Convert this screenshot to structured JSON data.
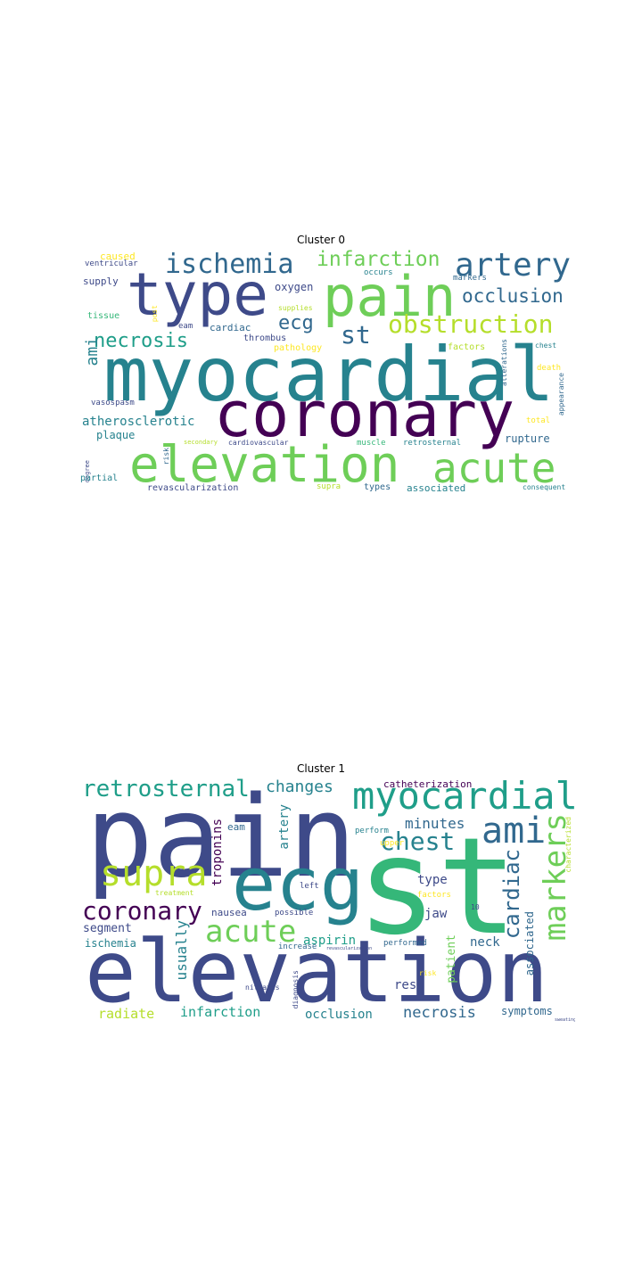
{
  "figure": {
    "panels": [
      {
        "title": "Cluster 0",
        "words": [
          "myocardial",
          "coronary",
          "elevation",
          "acute",
          "pain",
          "type",
          "artery",
          "ischemia",
          "infarction",
          "obstruction",
          "occlusion",
          "st",
          "ecg",
          "necrosis",
          "ami",
          "atherosclerotic",
          "plaque",
          "oxygen",
          "supply",
          "ventricular",
          "caused",
          "tissue",
          "post",
          "eam",
          "cardiac",
          "thrombus",
          "pathology",
          "supplies",
          "markers",
          "occurs",
          "factors",
          "chest",
          "death",
          "appearance",
          "alterations",
          "vasospasm",
          "total",
          "rupture",
          "retrosternal",
          "muscle",
          "cardiovascular",
          "secondary",
          "risk",
          "degree",
          "partial",
          "revascularization",
          "supra",
          "types",
          "associated",
          "consequent"
        ]
      },
      {
        "title": "Cluster 1",
        "words": [
          "pain",
          "elevation",
          "st",
          "ecg",
          "myocardial",
          "retrosternal",
          "changes",
          "catheterization",
          "supra",
          "chest",
          "ami",
          "cardiac",
          "markers",
          "minutes",
          "coronary",
          "acute",
          "eam",
          "artery",
          "troponins",
          "type",
          "jaw",
          "neck",
          "segment",
          "ischemia",
          "usually",
          "nausea",
          "aspirin",
          "possible",
          "increase",
          "performed",
          "patient",
          "left",
          "upper",
          "perform",
          "treatment",
          "factors",
          "10",
          "characterized",
          "associated",
          "revascularization",
          "diagnosis",
          "nitrates",
          "risk",
          "radiate",
          "infarction",
          "occlusion",
          "necrosis",
          "rest",
          "symptoms",
          "sweating"
        ]
      }
    ]
  },
  "palette": {
    "dark_purple": "#440154",
    "indigo": "#3e4a89",
    "blue": "#31688e",
    "teal": "#26828e",
    "green_teal": "#1f9e89",
    "green": "#35b779",
    "light_green": "#6ece58",
    "lime": "#b5de2b",
    "yellow": "#fde725"
  }
}
